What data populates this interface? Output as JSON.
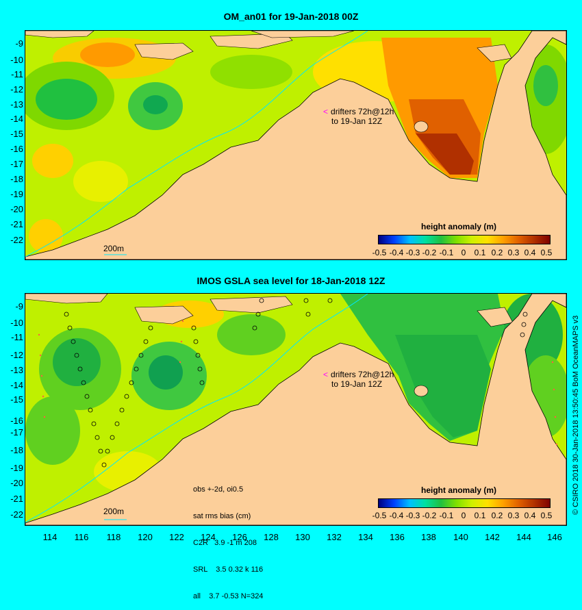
{
  "top_panel": {
    "title": "OM_an01 for 19-Jan-2018 00Z",
    "lat_labels": [
      "-9",
      "-10",
      "-11",
      "-12",
      "-13",
      "-14",
      "-15",
      "-16",
      "-17",
      "-18",
      "-19",
      "-20",
      "-21",
      "-22"
    ],
    "drifters_line1": "drifters 72h@12h",
    "drifters_line2": "to 19-Jan 12Z",
    "depth_contour_label": "200m",
    "colorbar_title": "height anomaly (m)",
    "colorbar_ticks": [
      "-0.5",
      "-0.4",
      "-0.3",
      "-0.2",
      "-0.1",
      "0",
      "0.1",
      "0.2",
      "0.3",
      "0.4",
      "0.5"
    ]
  },
  "bottom_panel": {
    "title": "IMOS GSLA sea level  for 18-Jan-2018 12Z",
    "lat_labels": [
      "-9",
      "-10",
      "-11",
      "-12",
      "-13",
      "-14",
      "-15",
      "-16",
      "-17",
      "-18",
      "-19",
      "-20",
      "-21",
      "-22"
    ],
    "drifters_line1": "drifters 72h@12h",
    "drifters_line2": "to 19-Jan 12Z",
    "depth_contour_label": "200m",
    "stats_line1": "obs +-2d, oi0.5",
    "stats_line2": "sat rms bias (cm)",
    "stats_line3": "C2R   3.9 -1 m 208",
    "stats_line4": "SRL    3.5 0.32 k 116",
    "stats_line5": "all    3.7 -0.53 N=324",
    "colorbar_title": "height anomaly (m)",
    "colorbar_ticks": [
      "-0.5",
      "-0.4",
      "-0.3",
      "-0.2",
      "-0.1",
      "0",
      "0.1",
      "0.2",
      "0.3",
      "0.4",
      "0.5"
    ]
  },
  "lon_labels": [
    "114",
    "116",
    "118",
    "120",
    "122",
    "124",
    "126",
    "128",
    "130",
    "132",
    "134",
    "136",
    "138",
    "140",
    "142",
    "144",
    "146"
  ],
  "credit": "© CSIRO 2018  30-Jan-2018 13:50:45 BoM OceanMAPS v3",
  "colors": {
    "background": "#00ffff",
    "land": "#fccf9a",
    "ocean_base": "#bff000",
    "colormap": [
      "#00007f",
      "#0040ff",
      "#00c0ff",
      "#00e0a0",
      "#20c040",
      "#80e000",
      "#d0f000",
      "#ffe000",
      "#ffa000",
      "#e06000",
      "#b03000",
      "#7f0000"
    ]
  }
}
